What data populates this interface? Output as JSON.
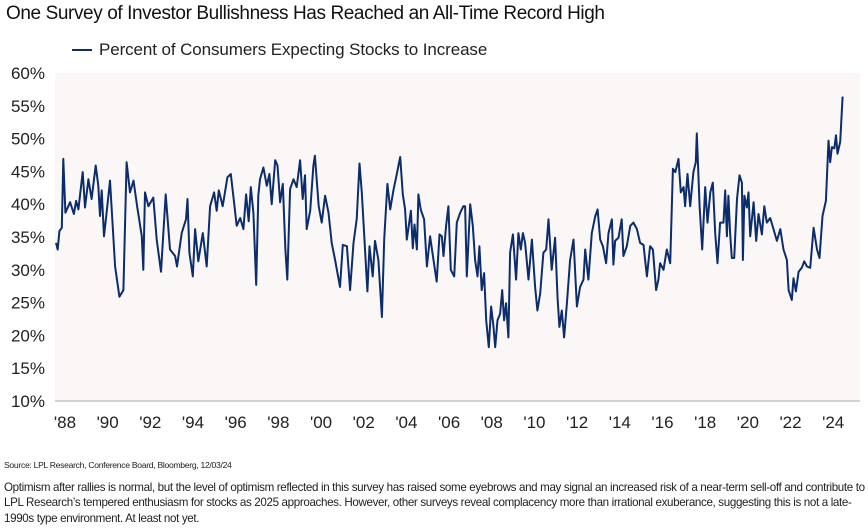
{
  "title": "One Survey of Investor Bullishness Has Reached an All-Time Record High",
  "source": "Source: LPL Research, Conference Board, Bloomberg, 12/03/24",
  "note": "Optimism after rallies is normal, but the level of optimism reflected in this survey has raised some eyebrows and may signal an increased risk of a near-term sell-off and contribute to LPL Research’s tempered enthusiasm for stocks as 2025 approaches. However, other surveys reveal complacency more than irrational exuberance, suggesting this is not a late-1990s type environment. At least not yet.",
  "chart_data": {
    "type": "line",
    "title": "One Survey of Investor Bullishness Has Reached an All-Time Record High",
    "xlabel": "",
    "ylabel": "",
    "ylim": [
      10,
      60
    ],
    "xlim": [
      1988,
      2024.9
    ],
    "yticks": [
      "10%",
      "15%",
      "20%",
      "25%",
      "30%",
      "35%",
      "40%",
      "45%",
      "50%",
      "55%",
      "60%"
    ],
    "ytick_values": [
      10,
      15,
      20,
      25,
      30,
      35,
      40,
      45,
      50,
      55,
      60
    ],
    "xticks": [
      "'88",
      "'90",
      "'92",
      "'94",
      "'96",
      "'98",
      "'00",
      "'02",
      "'04",
      "'06",
      "'08",
      "'10",
      "'12",
      "'14",
      "'16",
      "'18",
      "'20",
      "'22",
      "'24"
    ],
    "xtick_years": [
      1988,
      1990,
      1992,
      1994,
      1996,
      1998,
      2000,
      2002,
      2004,
      2006,
      2008,
      2010,
      2012,
      2014,
      2016,
      2018,
      2020,
      2022,
      2024
    ],
    "grid": false,
    "legend": "top-left",
    "background": "#fcf7f7",
    "series": [
      {
        "name": "Percent of Consumers Expecting Stocks to Increase",
        "color": "#0b2d6b",
        "x": [
          1988.0,
          1988.08,
          1988.16,
          1988.27,
          1988.34,
          1988.44,
          1988.66,
          1988.84,
          1988.94,
          1989.05,
          1989.25,
          1989.36,
          1989.52,
          1989.67,
          1989.86,
          1989.98,
          1990.06,
          1990.14,
          1990.25,
          1990.38,
          1990.53,
          1990.77,
          1990.97,
          1991.16,
          1991.31,
          1991.47,
          1991.63,
          1991.81,
          1992.02,
          1992.09,
          1992.17,
          1992.33,
          1992.56,
          1992.72,
          1992.92,
          1993.14,
          1993.34,
          1993.58,
          1993.67,
          1993.89,
          1994.09,
          1994.16,
          1994.25,
          1994.41,
          1994.52,
          1994.67,
          1994.88,
          1995.06,
          1995.22,
          1995.41,
          1995.53,
          1995.63,
          1995.81,
          1996.03,
          1996.19,
          1996.31,
          1996.47,
          1996.63,
          1996.78,
          1996.91,
          1997.03,
          1997.13,
          1997.25,
          1997.38,
          1997.48,
          1997.56,
          1997.72,
          1997.88,
          1998.0,
          1998.11,
          1998.27,
          1998.38,
          1998.5,
          1998.63,
          1998.75,
          1998.84,
          1998.97,
          1999.13,
          1999.28,
          1999.44,
          1999.56,
          1999.67,
          1999.75,
          1999.91,
          2000.06,
          2000.13,
          2000.31,
          2000.45,
          2000.61,
          2000.77,
          2000.92,
          2001.08,
          2001.31,
          2001.44,
          2001.63,
          2001.78,
          2001.94,
          2002.09,
          2002.22,
          2002.33,
          2002.59,
          2002.69,
          2002.84,
          2002.95,
          2003.11,
          2003.27,
          2003.38,
          2003.53,
          2003.66,
          2003.81,
          2003.97,
          2004.13,
          2004.25,
          2004.36,
          2004.44,
          2004.63,
          2004.72,
          2004.8,
          2004.91,
          2004.98,
          2005.09,
          2005.25,
          2005.38,
          2005.53,
          2005.69,
          2005.84,
          2005.97,
          2006.08,
          2006.16,
          2006.28,
          2006.39,
          2006.5,
          2006.66,
          2006.78,
          2006.94,
          2007.09,
          2007.17,
          2007.25,
          2007.41,
          2007.53,
          2007.64,
          2007.75,
          2007.84,
          2007.95,
          2008.06,
          2008.16,
          2008.28,
          2008.39,
          2008.5,
          2008.58,
          2008.69,
          2008.81,
          2008.91,
          2009.0,
          2009.09,
          2009.2,
          2009.28,
          2009.41,
          2009.56,
          2009.67,
          2009.78,
          2009.88,
          2009.98,
          2010.14,
          2010.3,
          2010.45,
          2010.56,
          2010.69,
          2010.84,
          2010.97,
          2011.08,
          2011.23,
          2011.39,
          2011.5,
          2011.59,
          2011.7,
          2011.81,
          2011.94,
          2012.09,
          2012.25,
          2012.41,
          2012.56,
          2012.72,
          2012.8,
          2012.95,
          2013.11,
          2013.27,
          2013.38,
          2013.5,
          2013.63,
          2013.78,
          2013.89,
          2014.05,
          2014.12,
          2014.2,
          2014.36,
          2014.51,
          2014.59,
          2014.75,
          2014.91,
          2015.06,
          2015.22,
          2015.37,
          2015.53,
          2015.69,
          2015.84,
          2015.97,
          2016.12,
          2016.23,
          2016.31,
          2016.47,
          2016.62,
          2016.78,
          2016.91,
          2017.02,
          2017.17,
          2017.28,
          2017.41,
          2017.48,
          2017.59,
          2017.72,
          2017.87,
          2017.98,
          2018.03,
          2018.16,
          2018.28,
          2018.42,
          2018.53,
          2018.66,
          2018.78,
          2018.89,
          2019.0,
          2019.12,
          2019.28,
          2019.36,
          2019.44,
          2019.51,
          2019.59,
          2019.67,
          2019.78,
          2019.91,
          2020.03,
          2020.14,
          2020.19,
          2020.26,
          2020.37,
          2020.45,
          2020.53,
          2020.69,
          2020.81,
          2020.92,
          2021.08,
          2021.19,
          2021.31,
          2021.47,
          2021.62,
          2021.78,
          2021.94,
          2022.09,
          2022.25,
          2022.33,
          2022.48,
          2022.56,
          2022.67,
          2022.8,
          2022.95,
          2023.06,
          2023.19,
          2023.34,
          2023.5,
          2023.66,
          2023.78,
          2023.92,
          2024.08,
          2024.2,
          2024.28,
          2024.36,
          2024.47,
          2024.55,
          2024.62,
          2024.75,
          2024.86
        ],
        "y": [
          34.1,
          33.1,
          35.9,
          36.4,
          46.9,
          38.7,
          40.3,
          38.5,
          40.5,
          39.2,
          44.9,
          39.5,
          43.8,
          40.8,
          45.9,
          42.8,
          38.2,
          42.1,
          35.1,
          39.0,
          43.6,
          30.5,
          25.9,
          26.9,
          46.4,
          41.8,
          43.6,
          39.5,
          35.1,
          30.0,
          41.8,
          39.7,
          41.0,
          34.6,
          29.7,
          41.5,
          33.1,
          32.1,
          30.5,
          35.6,
          37.7,
          40.8,
          32.6,
          29.0,
          36.2,
          31.3,
          35.6,
          30.5,
          39.7,
          41.8,
          39.0,
          42.1,
          39.7,
          44.1,
          44.6,
          41.3,
          36.7,
          37.9,
          36.2,
          41.5,
          37.4,
          42.6,
          38.7,
          27.7,
          41.3,
          43.8,
          45.6,
          42.8,
          44.6,
          40.0,
          46.7,
          45.9,
          40.3,
          43.1,
          33.1,
          28.5,
          42.3,
          43.8,
          42.6,
          46.7,
          40.8,
          44.4,
          36.2,
          39.0,
          45.9,
          47.4,
          39.7,
          37.2,
          41.3,
          38.7,
          34.1,
          31.5,
          27.4,
          33.8,
          33.6,
          26.9,
          34.1,
          37.7,
          46.2,
          41.8,
          26.7,
          33.6,
          29.0,
          34.4,
          31.5,
          22.8,
          34.6,
          43.1,
          39.2,
          42.1,
          44.6,
          47.2,
          41.5,
          39.2,
          34.6,
          39.0,
          33.3,
          36.9,
          33.1,
          41.5,
          39.2,
          37.7,
          30.5,
          35.1,
          31.5,
          28.2,
          35.4,
          35.1,
          32.1,
          36.7,
          39.7,
          30.0,
          29.0,
          37.2,
          38.7,
          39.7,
          39.7,
          29.0,
          40.0,
          36.7,
          31.5,
          29.0,
          33.6,
          26.9,
          29.5,
          22.3,
          18.2,
          24.4,
          21.3,
          18.2,
          22.3,
          23.3,
          26.9,
          22.3,
          24.9,
          19.7,
          32.6,
          35.4,
          28.5,
          35.6,
          33.1,
          35.6,
          34.1,
          28.5,
          34.6,
          27.4,
          23.8,
          26.4,
          32.6,
          33.1,
          37.7,
          30.0,
          34.9,
          25.9,
          21.3,
          23.8,
          19.7,
          24.9,
          31.5,
          34.6,
          24.4,
          27.4,
          28.5,
          33.1,
          28.5,
          35.6,
          38.2,
          39.2,
          34.6,
          33.6,
          31.0,
          35.6,
          37.7,
          30.8,
          34.4,
          34.9,
          37.7,
          32.1,
          33.6,
          36.7,
          37.2,
          36.2,
          34.1,
          33.8,
          29.0,
          33.6,
          33.1,
          26.9,
          28.5,
          31.0,
          30.0,
          33.1,
          31.0,
          45.4,
          44.9,
          46.9,
          41.8,
          42.6,
          39.7,
          44.6,
          39.7,
          44.9,
          46.4,
          50.8,
          39.7,
          33.1,
          42.6,
          37.2,
          41.8,
          43.3,
          35.6,
          31.0,
          37.2,
          37.2,
          42.1,
          35.1,
          41.3,
          35.6,
          31.8,
          31.8,
          40.8,
          44.4,
          43.3,
          31.5,
          41.3,
          39.5,
          41.8,
          35.1,
          40.3,
          34.4,
          38.5,
          35.4,
          39.7,
          37.2,
          37.9,
          36.2,
          34.4,
          36.2,
          33.1,
          31.5,
          26.9,
          25.4,
          28.7,
          26.7,
          29.7,
          30.3,
          31.3,
          30.5,
          30.3,
          36.4,
          33.1,
          31.8,
          38.2,
          40.5,
          49.7,
          46.4,
          48.7,
          48.5,
          50.5,
          47.7,
          49.5,
          56.4
        ]
      }
    ]
  }
}
